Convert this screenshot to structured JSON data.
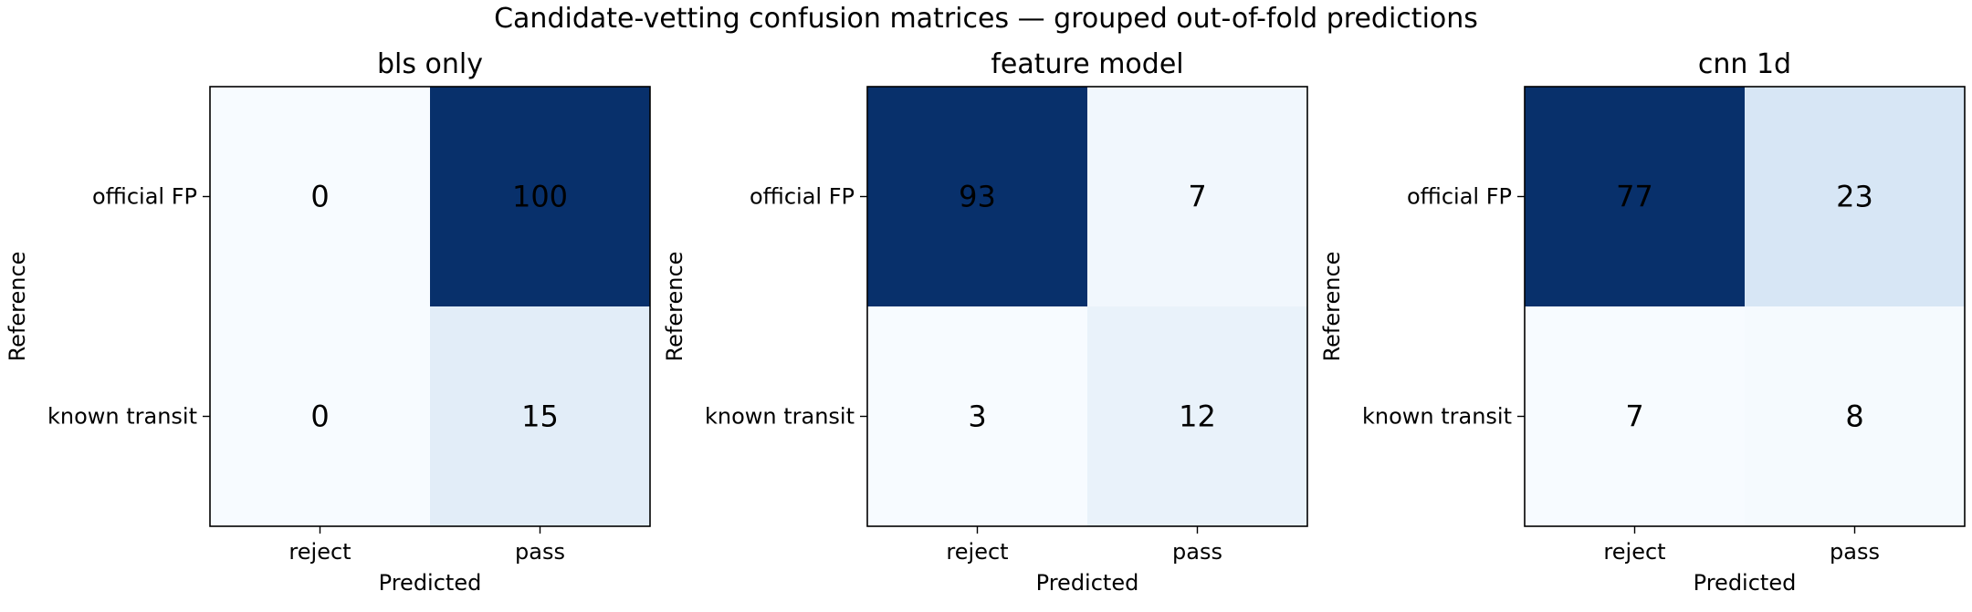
{
  "suptitle": "Candidate-vetting confusion matrices — grouped out-of-fold predictions",
  "colormap": {
    "low": "#f7fbff",
    "mid": "#c6dbef",
    "high": "#08306b"
  },
  "chart_data": [
    {
      "type": "heatmap",
      "title": "bls only",
      "xlabel": "Predicted",
      "ylabel": "Reference",
      "x_categories": [
        "reject",
        "pass"
      ],
      "y_categories": [
        "official FP",
        "known transit"
      ],
      "values": [
        [
          0,
          100
        ],
        [
          0,
          15
        ]
      ],
      "colorscale_range": [
        0,
        100
      ]
    },
    {
      "type": "heatmap",
      "title": "feature model",
      "xlabel": "Predicted",
      "ylabel": "Reference",
      "x_categories": [
        "reject",
        "pass"
      ],
      "y_categories": [
        "official FP",
        "known transit"
      ],
      "values": [
        [
          93,
          7
        ],
        [
          3,
          12
        ]
      ],
      "colorscale_range": [
        3,
        93
      ]
    },
    {
      "type": "heatmap",
      "title": "cnn 1d",
      "xlabel": "Predicted",
      "ylabel": "Reference",
      "x_categories": [
        "reject",
        "pass"
      ],
      "y_categories": [
        "official FP",
        "known transit"
      ],
      "values": [
        [
          77,
          23
        ],
        [
          7,
          8
        ]
      ],
      "colorscale_range": [
        7,
        77
      ]
    }
  ]
}
